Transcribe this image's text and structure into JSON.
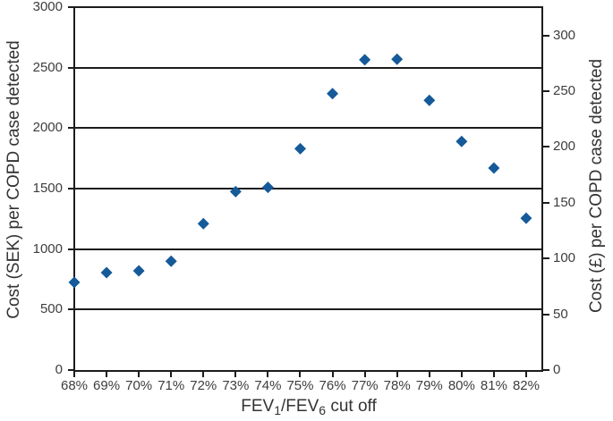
{
  "chart_data": {
    "type": "scatter",
    "title": "",
    "categories": [
      "68%",
      "69%",
      "70%",
      "71%",
      "72%",
      "73%",
      "74%",
      "75%",
      "76%",
      "77%",
      "78%",
      "79%",
      "80%",
      "81%",
      "82%"
    ],
    "values": [
      725,
      805,
      820,
      900,
      1210,
      1475,
      1510,
      1830,
      2285,
      2565,
      2570,
      2230,
      1890,
      1670,
      1255
    ],
    "values_unit": "SEK",
    "y1_label": "Cost (SEK) per COPD case detected",
    "y2_label": "Cost (£) per COPD case detected",
    "x_label_text": "FEV1/FEV6 cut off",
    "x_label_parts": {
      "p1": "FEV",
      "s1": "1",
      "p2": "/FEV",
      "s2": "6",
      "p3": " cut off"
    },
    "y1_ticks": [
      0,
      500,
      1000,
      1500,
      2000,
      2500,
      3000
    ],
    "y2_ticks": [
      0,
      50,
      100,
      150,
      200,
      250,
      300
    ],
    "y1_range": [
      0,
      3000
    ],
    "y2_range": [
      0,
      300
    ],
    "y2_sek_per_pound": 9.22,
    "grid": "horizontal-only",
    "legend": "none",
    "marker": {
      "shape": "diamond",
      "color": "#155A99",
      "size": 13
    },
    "line_color": "#1c1c1c",
    "tick_text_color": "#3d3d3d",
    "title_text_color": "#333333",
    "background_color": "#ffffff"
  }
}
